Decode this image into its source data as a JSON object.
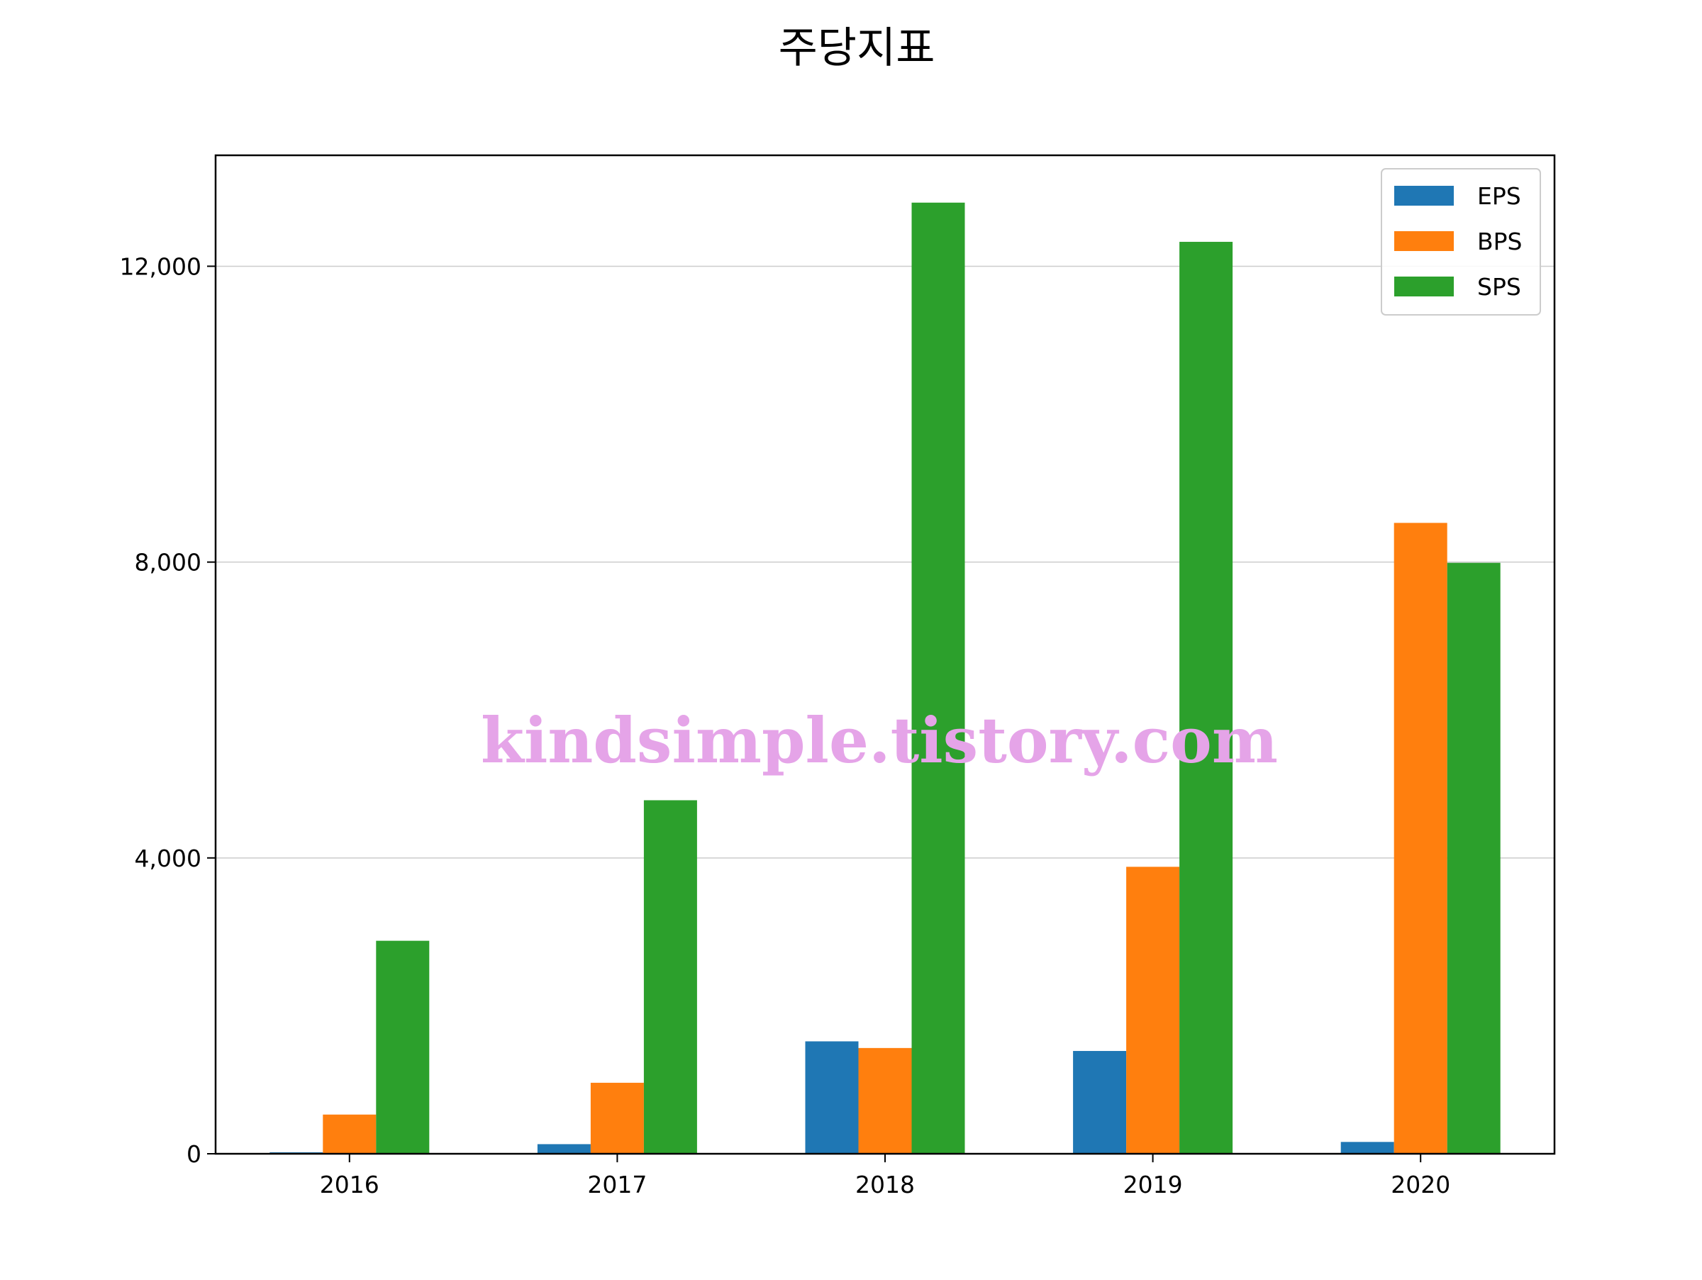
{
  "chart_data": {
    "type": "bar",
    "title": "주당지표",
    "categories": [
      "2016",
      "2017",
      "2018",
      "2019",
      "2020"
    ],
    "series": [
      {
        "name": "EPS",
        "color": "#1f77b4",
        "values": [
          20,
          130,
          1520,
          1390,
          160
        ]
      },
      {
        "name": "BPS",
        "color": "#ff7f0e",
        "values": [
          530,
          960,
          1430,
          3880,
          8530
        ]
      },
      {
        "name": "SPS",
        "color": "#2ca02c",
        "values": [
          2880,
          4780,
          12860,
          12330,
          7990
        ]
      }
    ],
    "y_ticks": [
      {
        "value": 0,
        "label": "0"
      },
      {
        "value": 4000,
        "label": "4,000"
      },
      {
        "value": 8000,
        "label": "8,000"
      },
      {
        "value": 12000,
        "label": "12,000"
      }
    ],
    "ylim": [
      0,
      13500
    ],
    "grid": "y",
    "legend_position": "top-right"
  },
  "watermark": "kindsimple.tistory.com"
}
